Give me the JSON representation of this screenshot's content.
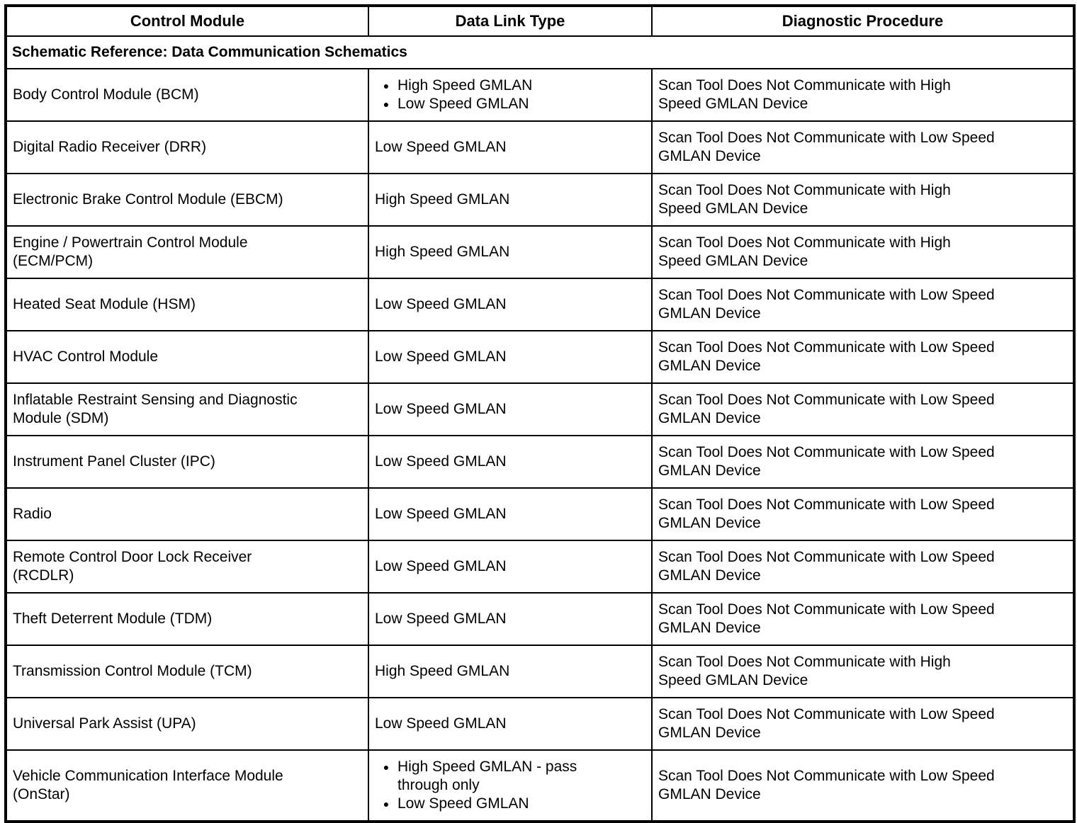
{
  "table": {
    "headers": [
      "Control Module",
      "Data Link Type",
      "Diagnostic Procedure"
    ],
    "schematic_reference": "Schematic Reference: Data Communication Schematics",
    "bullet_glyph": "●",
    "rows": [
      {
        "module": "Body Control Module (BCM)",
        "data_link": [
          "High Speed GMLAN",
          "Low Speed GMLAN"
        ],
        "procedure": "Scan Tool Does Not Communicate with High\nSpeed GMLAN Device"
      },
      {
        "module": "Digital Radio Receiver (DRR)",
        "data_link": "Low Speed GMLAN",
        "procedure": "Scan Tool Does Not Communicate with Low Speed\nGMLAN Device"
      },
      {
        "module": "Electronic Brake Control Module (EBCM)",
        "data_link": "High Speed GMLAN",
        "procedure": "Scan Tool Does Not Communicate with High\nSpeed GMLAN Device"
      },
      {
        "module": "Engine / Powertrain Control Module\n(ECM/PCM)",
        "data_link": "High Speed GMLAN",
        "procedure": "Scan Tool Does Not Communicate with High\nSpeed GMLAN Device"
      },
      {
        "module": "Heated Seat Module (HSM)",
        "data_link": "Low Speed GMLAN",
        "procedure": "Scan Tool Does Not Communicate with Low Speed\nGMLAN Device"
      },
      {
        "module": "HVAC Control Module",
        "data_link": "Low Speed GMLAN",
        "procedure": "Scan Tool Does Not Communicate with Low Speed\nGMLAN Device"
      },
      {
        "module": "Inflatable Restraint Sensing and Diagnostic\nModule (SDM)",
        "data_link": "Low Speed GMLAN",
        "procedure": "Scan Tool Does Not Communicate with Low Speed\nGMLAN Device"
      },
      {
        "module": "Instrument Panel Cluster (IPC)",
        "data_link": "Low Speed GMLAN",
        "procedure": "Scan Tool Does Not Communicate with Low Speed\nGMLAN Device"
      },
      {
        "module": "Radio",
        "data_link": "Low Speed GMLAN",
        "procedure": "Scan Tool Does Not Communicate with Low Speed\nGMLAN Device"
      },
      {
        "module": "Remote Control Door Lock Receiver\n(RCDLR)",
        "data_link": "Low Speed GMLAN",
        "procedure": "Scan Tool Does Not Communicate with Low Speed\nGMLAN Device"
      },
      {
        "module": "Theft Deterrent Module (TDM)",
        "data_link": "Low Speed GMLAN",
        "procedure": "Scan Tool Does Not Communicate with Low Speed\nGMLAN Device"
      },
      {
        "module": "Transmission Control Module (TCM)",
        "data_link": "High Speed GMLAN",
        "procedure": "Scan Tool Does Not Communicate with High\nSpeed GMLAN Device"
      },
      {
        "module": "Universal Park Assist (UPA)",
        "data_link": "Low Speed GMLAN",
        "procedure": "Scan Tool Does Not Communicate with Low Speed\nGMLAN Device"
      },
      {
        "module": "Vehicle Communication Interface Module\n(OnStar)",
        "data_link": [
          "High Speed GMLAN - pass\nthrough only",
          "Low Speed GMLAN"
        ],
        "procedure": "Scan Tool Does Not Communicate with Low Speed\nGMLAN Device"
      }
    ]
  }
}
